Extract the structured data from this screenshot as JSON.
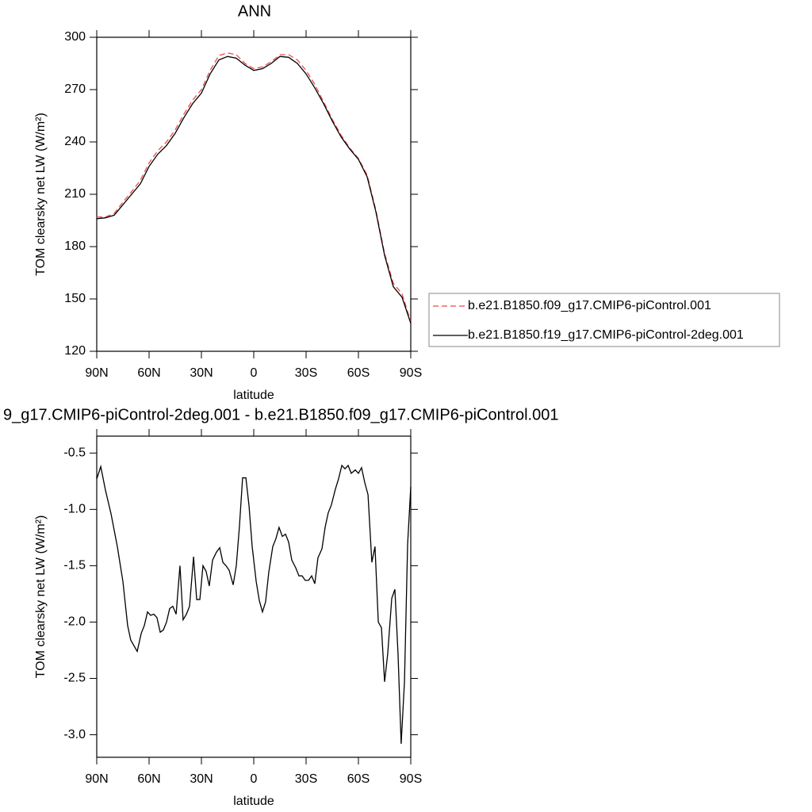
{
  "chart_data": [
    {
      "type": "line",
      "title": "ANN",
      "xlabel": "latitude",
      "ylabel": "TOM clearsky net LW (W/m²)",
      "xlim": [
        90,
        -90
      ],
      "ylim": [
        120,
        300
      ],
      "xticks": [
        {
          "value": 90,
          "label": "90N"
        },
        {
          "value": 60,
          "label": "60N"
        },
        {
          "value": 30,
          "label": "30N"
        },
        0,
        {
          "value": -30,
          "label": "30S"
        },
        {
          "value": -60,
          "label": "60S"
        },
        {
          "value": -90,
          "label": "90S"
        }
      ],
      "yticks": [
        120,
        150,
        180,
        210,
        240,
        270,
        300
      ],
      "legend": "right",
      "series": [
        {
          "name": "b.e21.B1850.f09_g17.CMIP6-piControl.001",
          "color": "#f04848",
          "dashed": true,
          "x": [
            90,
            85,
            80,
            75,
            70,
            65,
            60,
            55,
            50,
            45,
            40,
            35,
            30,
            25,
            20,
            15,
            10,
            5,
            0,
            -5,
            -10,
            -15,
            -20,
            -25,
            -30,
            -35,
            -40,
            -45,
            -50,
            -55,
            -60,
            -65,
            -70,
            -75,
            -80,
            -85,
            -90
          ],
          "values": [
            197,
            197,
            199,
            205.5,
            211.5,
            218,
            228,
            235,
            240,
            247,
            256,
            264,
            270,
            281,
            289.5,
            291,
            290,
            285,
            282,
            283,
            286,
            290,
            290,
            287,
            281,
            273,
            263,
            253,
            244,
            236.5,
            230.5,
            221,
            201,
            176,
            159,
            153,
            137
          ]
        },
        {
          "name": "b.e21.B1850.f19_g17.CMIP6-piControl-2deg.001",
          "color": "#000000",
          "dashed": false,
          "x": [
            90,
            85,
            80,
            75,
            70,
            65,
            60,
            55,
            50,
            45,
            40,
            35,
            30,
            25,
            20,
            15,
            10,
            5,
            0,
            -5,
            -10,
            -15,
            -20,
            -25,
            -30,
            -35,
            -40,
            -45,
            -50,
            -55,
            -60,
            -65,
            -70,
            -75,
            -80,
            -85,
            -90
          ],
          "values": [
            196,
            196.5,
            198,
            204,
            210,
            216,
            226,
            233,
            238,
            245,
            254,
            262,
            268,
            279,
            287,
            289,
            288,
            284,
            281,
            282,
            285,
            289,
            288.5,
            285,
            279,
            271,
            262,
            252,
            243,
            236,
            230,
            220,
            200,
            175,
            157,
            151,
            136
          ]
        }
      ]
    },
    {
      "type": "line",
      "title": "9_g17.CMIP6-piControl-2deg.001 - b.e21.B1850.f09_g17.CMIP6-piControl.001",
      "xlabel": "latitude",
      "ylabel": "TOM clearsky net LW (W/m²)",
      "xlim": [
        90,
        -90
      ],
      "ylim": [
        -3.2,
        -0.35
      ],
      "xticks": [
        {
          "value": 90,
          "label": "90N"
        },
        {
          "value": 60,
          "label": "60N"
        },
        {
          "value": 30,
          "label": "30N"
        },
        0,
        {
          "value": -30,
          "label": "30S"
        },
        {
          "value": -60,
          "label": "60S"
        },
        {
          "value": -90,
          "label": "90S"
        }
      ],
      "yticks": [
        {
          "value": -3,
          "label": "-3.0"
        },
        -2.5,
        {
          "value": -2,
          "label": "-2.0"
        },
        -1.5,
        {
          "value": -1,
          "label": "-1.0"
        },
        -0.5
      ],
      "series": [
        {
          "color": "#000000",
          "dashed": false,
          "x": [
            90,
            87.7,
            85,
            81.8,
            78.2,
            75,
            72.3,
            70.5,
            66.8,
            64.5,
            62.7,
            60.9,
            59.1,
            57.3,
            55.5,
            53.6,
            51.8,
            50,
            48.2,
            46.4,
            44.5,
            42.3,
            40.5,
            38.6,
            36.8,
            34.5,
            32.7,
            30.9,
            29.1,
            27.3,
            25.5,
            23.6,
            21.4,
            19.5,
            17.7,
            15.9,
            14.1,
            11.8,
            10,
            8.2,
            6.4,
            4.5,
            2.7,
            0.9,
            -1.4,
            -3.2,
            -5,
            -6.8,
            -8.6,
            -10.9,
            -12.7,
            -14.5,
            -16.4,
            -18.2,
            -20,
            -21.8,
            -24.1,
            -25.9,
            -27.7,
            -29.5,
            -31.4,
            -33.2,
            -35,
            -36.8,
            -39.1,
            -40.9,
            -42.7,
            -44.5,
            -46.8,
            -48.6,
            -50.5,
            -52.3,
            -54.1,
            -55.9,
            -58.2,
            -60,
            -61.8,
            -63.6,
            -65.5,
            -67.7,
            -69.5,
            -71.4,
            -73.2,
            -75,
            -76.8,
            -79.1,
            -80.9,
            -82.7,
            -84.5,
            -86.4,
            -88.2,
            -90
          ],
          "values": [
            -0.73,
            -0.62,
            -0.83,
            -1.04,
            -1.33,
            -1.64,
            -2.03,
            -2.16,
            -2.26,
            -2.1,
            -2.03,
            -1.91,
            -1.94,
            -1.93,
            -1.96,
            -2.09,
            -2.07,
            -2.0,
            -1.88,
            -1.86,
            -1.93,
            -1.5,
            -1.98,
            -1.93,
            -1.86,
            -1.42,
            -1.8,
            -1.8,
            -1.5,
            -1.55,
            -1.68,
            -1.45,
            -1.38,
            -1.34,
            -1.47,
            -1.5,
            -1.54,
            -1.67,
            -1.5,
            -1.15,
            -0.72,
            -0.72,
            -0.97,
            -1.33,
            -1.64,
            -1.81,
            -1.91,
            -1.82,
            -1.56,
            -1.33,
            -1.26,
            -1.16,
            -1.24,
            -1.22,
            -1.29,
            -1.45,
            -1.52,
            -1.59,
            -1.59,
            -1.63,
            -1.63,
            -1.59,
            -1.66,
            -1.43,
            -1.35,
            -1.16,
            -1.03,
            -0.96,
            -0.82,
            -0.73,
            -0.61,
            -0.64,
            -0.61,
            -0.68,
            -0.65,
            -0.68,
            -0.63,
            -0.76,
            -0.87,
            -1.47,
            -1.33,
            -2.0,
            -2.05,
            -2.53,
            -2.28,
            -1.79,
            -1.71,
            -2.28,
            -3.08,
            -2.53,
            -1.31,
            -0.8
          ]
        }
      ]
    }
  ]
}
